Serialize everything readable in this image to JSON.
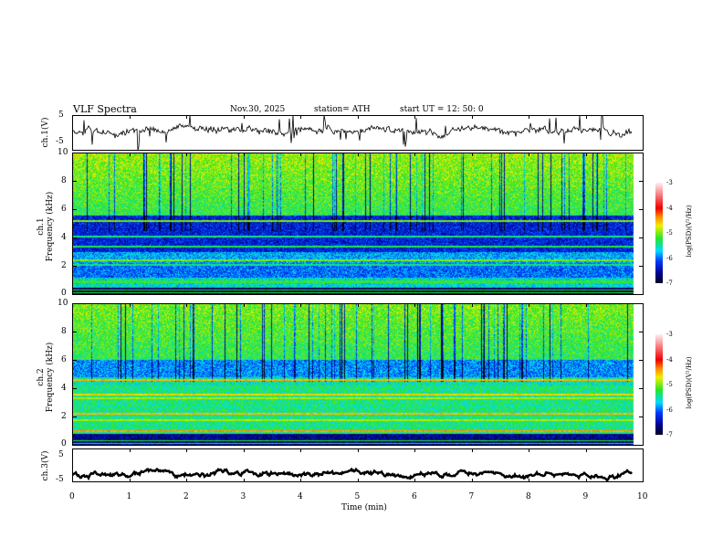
{
  "header": {
    "title": "VLF  Spectra",
    "date": "Nov.30, 2025",
    "station": "station= ATH",
    "start_ut": "start  UT  =    12: 50: 0"
  },
  "chart_data": [
    {
      "type": "line",
      "name": "ch1 time series",
      "ylabel": "ch.1(V)",
      "ylim": [
        -5,
        5
      ],
      "yticks": [
        "5",
        "-5"
      ],
      "xlim": [
        0,
        10
      ],
      "mean_level": 0.5
    },
    {
      "type": "heatmap",
      "name": "ch1 spectrogram",
      "ylabel": "ch.1\nFrequency (kHz)",
      "ylabel_top": "ch.1",
      "ylabel_bottom": "Frequency (kHz)",
      "ylim": [
        0,
        10
      ],
      "yticks": [
        "0",
        "2",
        "4",
        "6",
        "8",
        "10"
      ],
      "xlim": [
        0,
        10
      ],
      "colorbar": {
        "label": "log(PSD)(V²/Hz)",
        "range": [
          -7,
          -3
        ],
        "ticks": [
          "-3",
          "-4",
          "-5",
          "-6",
          "-7"
        ]
      }
    },
    {
      "type": "heatmap",
      "name": "ch2 spectrogram",
      "ylabel_top": "ch.2",
      "ylabel_bottom": "Frequency (kHz)",
      "ylim": [
        0,
        10
      ],
      "yticks": [
        "0",
        "2",
        "4",
        "6",
        "8",
        "10"
      ],
      "xlim": [
        0,
        10
      ],
      "colorbar": {
        "label": "log(PSD)(V²/Hz)",
        "range": [
          -7,
          -3
        ],
        "ticks": [
          "-3",
          "-4",
          "-5",
          "-6",
          "-7"
        ]
      }
    },
    {
      "type": "line",
      "name": "ch3 time series",
      "ylabel": "ch.3(V)",
      "ylim": [
        -5,
        5
      ],
      "yticks": [
        "5",
        "-5"
      ],
      "xlim": [
        0,
        10
      ],
      "mean_level": -2.5
    }
  ],
  "xaxis": {
    "label": "Time  (min)",
    "ticks": [
      "0",
      "1",
      "2",
      "3",
      "4",
      "5",
      "6",
      "7",
      "8",
      "9",
      "10"
    ]
  },
  "colors": {
    "trace": "#000000"
  }
}
